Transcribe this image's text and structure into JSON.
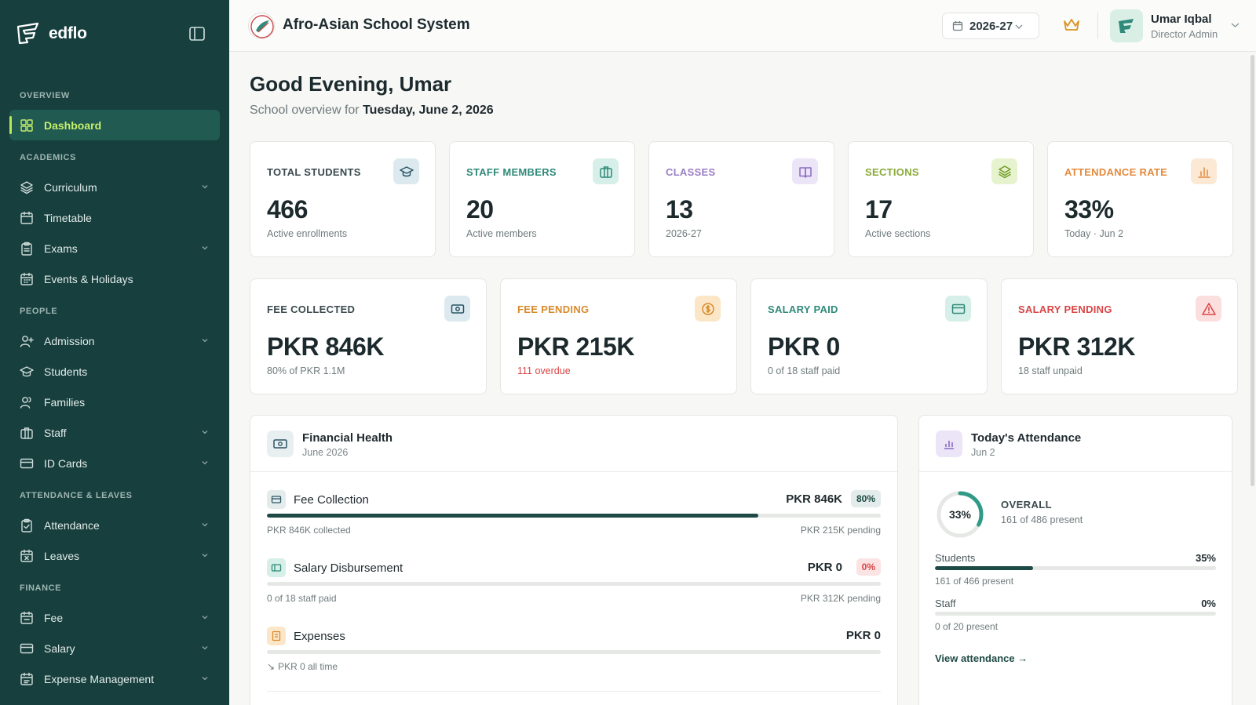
{
  "brand": {
    "name": "edflo"
  },
  "sidebar": {
    "sections": [
      {
        "title": "OVERVIEW",
        "items": [
          {
            "label": "Dashboard",
            "icon": "dashboard-icon",
            "active": true
          }
        ]
      },
      {
        "title": "ACADEMICS",
        "items": [
          {
            "label": "Curriculum",
            "icon": "layers-icon",
            "chevron": true
          },
          {
            "label": "Timetable",
            "icon": "calendar-icon"
          },
          {
            "label": "Exams",
            "icon": "clipboard-icon",
            "chevron": true
          },
          {
            "label": "Events & Holidays",
            "icon": "calendar-grid-icon"
          }
        ]
      },
      {
        "title": "PEOPLE",
        "items": [
          {
            "label": "Admission",
            "icon": "user-plus-icon",
            "chevron": true
          },
          {
            "label": "Students",
            "icon": "graduation-cap-icon"
          },
          {
            "label": "Families",
            "icon": "users-icon"
          },
          {
            "label": "Staff",
            "icon": "briefcase-icon",
            "chevron": true
          },
          {
            "label": "ID Cards",
            "icon": "id-card-icon",
            "chevron": true
          }
        ]
      },
      {
        "title": "ATTENDANCE & LEAVES",
        "items": [
          {
            "label": "Attendance",
            "icon": "clipboard-check-icon",
            "chevron": true
          },
          {
            "label": "Leaves",
            "icon": "calendar-x-icon",
            "chevron": true
          }
        ]
      },
      {
        "title": "FINANCE",
        "items": [
          {
            "label": "Fee",
            "icon": "receipt-icon",
            "chevron": true
          },
          {
            "label": "Salary",
            "icon": "wallet-icon",
            "chevron": true
          },
          {
            "label": "Expense Management",
            "icon": "expense-icon",
            "chevron": true
          }
        ]
      }
    ]
  },
  "header": {
    "school_name": "Afro-Asian School System",
    "year": "2026-27",
    "user_name": "Umar Iqbal",
    "user_role": "Director Admin"
  },
  "main": {
    "greeting": "Good Evening, Umar",
    "subtitle_prefix": "School overview for",
    "subtitle_date": "Tuesday, June 2, 2026"
  },
  "stats": [
    {
      "label": "TOTAL STUDENTS",
      "value": "466",
      "sub": "Active enrollments",
      "color": "#3b4a4d",
      "icon_bg": "#dceaf0",
      "icon_color": "#2a5566"
    },
    {
      "label": "STAFF MEMBERS",
      "value": "20",
      "sub": "Active members",
      "color": "#2f8a7a",
      "icon_bg": "#d6efe8",
      "icon_color": "#2f8a7a"
    },
    {
      "label": "CLASSES",
      "value": "13",
      "sub": "2026-27",
      "color": "#9a7fc4",
      "icon_bg": "#ece4f7",
      "icon_color": "#8a6cc2"
    },
    {
      "label": "SECTIONS",
      "value": "17",
      "sub": "Active sections",
      "color": "#8aaa3a",
      "icon_bg": "#e7f3cf",
      "icon_color": "#6f9a23"
    },
    {
      "label": "ATTENDANCE RATE",
      "value": "33%",
      "sub": "Today · Jun 2",
      "color": "#e38a3c",
      "icon_bg": "#fbe8d5",
      "icon_color": "#e38a3c"
    }
  ],
  "finance_cards": [
    {
      "label": "FEE COLLECTED",
      "value": "PKR 846K",
      "sub": "80% of PKR 1.1M",
      "color": "#3b4a4d",
      "icon_bg": "#dceaf0",
      "icon_color": "#2a5566"
    },
    {
      "label": "FEE PENDING",
      "value": "PKR 215K",
      "sub": "111 overdue",
      "sub_red": true,
      "color": "#d98a2b",
      "icon_bg": "#fbe7c8",
      "icon_color": "#d98a2b"
    },
    {
      "label": "SALARY PAID",
      "value": "PKR 0",
      "sub": "0 of 18 staff paid",
      "color": "#2f8a7a",
      "icon_bg": "#d6efe8",
      "icon_color": "#2f8a7a"
    },
    {
      "label": "SALARY PENDING",
      "value": "PKR 312K",
      "sub": "18 staff unpaid",
      "color": "#d94545",
      "icon_bg": "#fbdede",
      "icon_color": "#d94545"
    }
  ],
  "financial_health": {
    "title": "Financial Health",
    "subtitle": "June 2026",
    "rows": [
      {
        "name": "Fee Collection",
        "amount": "PKR 846K",
        "pct": "80%",
        "fill": 0.8,
        "left": "PKR 846K collected",
        "right": "PKR 215K pending",
        "pct_bg": "#e3ecea",
        "pct_color": "#1e4a45",
        "icon_bg": "#e3ecea",
        "icon_color": "#2a5566"
      },
      {
        "name": "Salary Disbursement",
        "amount": "PKR 0",
        "pct": "0%",
        "fill": 0.0,
        "left": "0 of 18 staff paid",
        "right": "PKR 312K pending",
        "pct_bg": "#fbe3e3",
        "pct_color": "#d94545",
        "icon_bg": "#d6efe8",
        "icon_color": "#2f8a7a"
      },
      {
        "name": "Expenses",
        "amount": "PKR 0",
        "pct": "",
        "fill": 0.0,
        "left": "PKR 0 all time",
        "right": "",
        "icon_bg": "#fbe7c8",
        "icon_color": "#d98a2b"
      }
    ]
  },
  "attendance": {
    "title": "Today's Attendance",
    "subtitle": "Jun 2",
    "overall_pct": "33%",
    "overall_value": 0.33,
    "overall_label": "OVERALL",
    "overall_sub": "161 of 486 present",
    "rows": [
      {
        "name": "Students",
        "pct": "35%",
        "fill": 0.35,
        "sub": "161 of 466 present"
      },
      {
        "name": "Staff",
        "pct": "0%",
        "fill": 0.0,
        "sub": "0 of 20 present"
      }
    ],
    "view_link": "View attendance →"
  }
}
